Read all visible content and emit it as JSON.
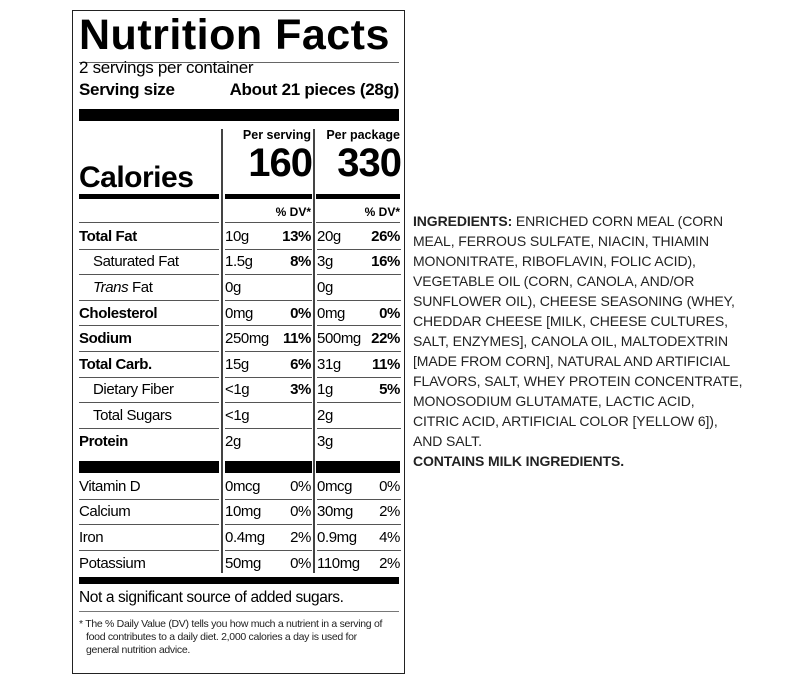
{
  "label": {
    "title": "Nutrition Facts",
    "servings_per_container": "2 servings per container",
    "serving_size_label": "Serving size",
    "serving_size_value": "About 21 pieces (28g)",
    "per_serving_label": "Per serving",
    "per_package_label": "Per package",
    "calories_label": "Calories",
    "calories_serving": "160",
    "calories_package": "330",
    "dv_header": "% DV*",
    "nutrients": [
      {
        "name": "Total Fat",
        "bold": true,
        "indent": false,
        "serving_amount": "10g",
        "serving_dv": "13%",
        "package_amount": "20g",
        "package_dv": "26%"
      },
      {
        "name": "Saturated Fat",
        "bold": false,
        "indent": true,
        "serving_amount": "1.5g",
        "serving_dv": "8%",
        "package_amount": "3g",
        "package_dv": "16%"
      },
      {
        "name": "Trans Fat",
        "bold": false,
        "indent": true,
        "italic_prefix": "Trans",
        "serving_amount": "0g",
        "serving_dv": "",
        "package_amount": "0g",
        "package_dv": ""
      },
      {
        "name": "Cholesterol",
        "bold": true,
        "indent": false,
        "serving_amount": "0mg",
        "serving_dv": "0%",
        "package_amount": "0mg",
        "package_dv": "0%"
      },
      {
        "name": "Sodium",
        "bold": true,
        "indent": false,
        "serving_amount": "250mg",
        "serving_dv": "11%",
        "package_amount": "500mg",
        "package_dv": "22%"
      },
      {
        "name": "Total Carb.",
        "bold": true,
        "indent": false,
        "serving_amount": "15g",
        "serving_dv": "6%",
        "package_amount": "31g",
        "package_dv": "11%"
      },
      {
        "name": "Dietary Fiber",
        "bold": false,
        "indent": true,
        "serving_amount": "<1g",
        "serving_dv": "3%",
        "package_amount": "1g",
        "package_dv": "5%"
      },
      {
        "name": "Total Sugars",
        "bold": false,
        "indent": true,
        "serving_amount": "<1g",
        "serving_dv": "",
        "package_amount": "2g",
        "package_dv": ""
      },
      {
        "name": "Protein",
        "bold": true,
        "indent": false,
        "serving_amount": "2g",
        "serving_dv": "",
        "package_amount": "3g",
        "package_dv": ""
      }
    ],
    "vitamins": [
      {
        "name": "Vitamin D",
        "serving_amount": "0mcg",
        "serving_dv": "0%",
        "package_amount": "0mcg",
        "package_dv": "0%"
      },
      {
        "name": "Calcium",
        "serving_amount": "10mg",
        "serving_dv": "0%",
        "package_amount": "30mg",
        "package_dv": "2%"
      },
      {
        "name": "Iron",
        "serving_amount": "0.4mg",
        "serving_dv": "2%",
        "package_amount": "0.9mg",
        "package_dv": "4%"
      },
      {
        "name": "Potassium",
        "serving_amount": "50mg",
        "serving_dv": "0%",
        "package_amount": "110mg",
        "package_dv": "2%"
      }
    ],
    "added_sugars_note": "Not a significant source of added sugars.",
    "footnote_lines": [
      "* The % Daily Value (DV) tells you how much a nutrient in a serving of",
      "food contributes to a daily diet. 2,000 calories a day is used for",
      "general nutrition advice."
    ]
  },
  "ingredients": {
    "heading": "INGREDIENTS:",
    "lines": [
      " ENRICHED CORN MEAL (CORN",
      "MEAL, FERROUS SULFATE, NIACIN, THIAMIN",
      "MONONITRATE, RIBOFLAVIN, FOLIC ACID),",
      "VEGETABLE OIL (CORN, CANOLA, AND/OR",
      "SUNFLOWER OIL), CHEESE SEASONING (WHEY,",
      "CHEDDAR CHEESE [MILK, CHEESE CULTURES,",
      "SALT, ENZYMES], CANOLA OIL, MALTODEXTRIN",
      "[MADE FROM CORN], NATURAL AND ARTIFICIAL",
      "FLAVORS, SALT, WHEY PROTEIN CONCENTRATE,",
      "MONOSODIUM GLUTAMATE, LACTIC ACID,",
      "CITRIC ACID, ARTIFICIAL COLOR [YELLOW 6]),",
      "AND SALT."
    ],
    "allergen": "CONTAINS MILK INGREDIENTS."
  }
}
